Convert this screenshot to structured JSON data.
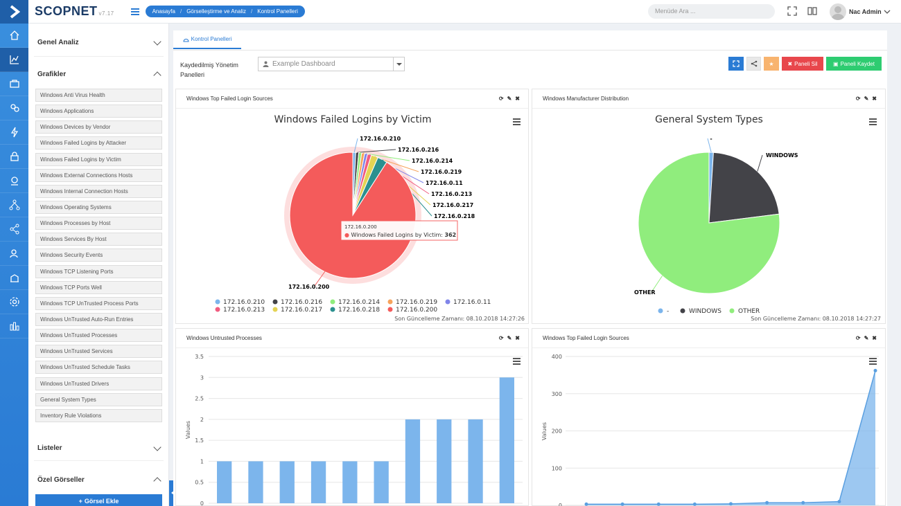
{
  "app": {
    "brand": "SCOPNET",
    "version": "v7.17"
  },
  "breadcrumb": [
    "Anasayfa",
    "Görselleştirme ve Analiz",
    "Kontrol Panelleri"
  ],
  "search": {
    "placeholder": "Menüde Ara ..."
  },
  "user": {
    "name": "Nac Admin"
  },
  "sidebar": {
    "sections": {
      "genel": "Genel Analiz",
      "grafikler": "Grafikler",
      "listeler": "Listeler",
      "ozel": "Özel Görseller"
    },
    "items": [
      "Windows Anti Virus Health",
      "Windows Applications",
      "Windows Devices by Vendor",
      "Windows Failed Logins by Attacker",
      "Windows Failed Logins by Victim",
      "Windows External Connections Hosts",
      "Windows Internal Connection Hosts",
      "Windows Operating Systems",
      "Windows Processes by Host",
      "Windows Services By Host",
      "Windows Security Events",
      "Windows TCP Listening Ports",
      "Windows TCP Ports Well",
      "Windows TCP UnTrusted Process Ports",
      "Windows UnTrusted Auto-Run Entries",
      "Windows UnTrusted Processes",
      "Windows UnTrusted Services",
      "Windows UnTrusted Schedule Tasks",
      "Windows UnTrusted Drivers",
      "General System Types",
      "Inventory Rule Violations"
    ],
    "add_button": "Görsel Ekle"
  },
  "main": {
    "tab": "Kontrol Panelleri",
    "saved_label": "Kaydedilmiş Yönetim Panelleri",
    "select_value": "Example Dashboard",
    "buttons": {
      "delete": "Paneli Sil",
      "save": "Paneli Kaydet"
    }
  },
  "panels": {
    "p1": {
      "title": "Windows Top Failed Login Sources",
      "footer": "Son Güncelleme Zamanı: 08.10.2018 14:27:26"
    },
    "p2": {
      "title": "Windows Manufacturer Distribution",
      "footer": "Son Güncelleme Zamanı: 08.10.2018 14:27:27"
    },
    "p3": {
      "title": "Windows Untrusted Processes"
    },
    "p4": {
      "title": "Windows Top Failed Login Sources"
    }
  },
  "chart_data": [
    {
      "type": "pie",
      "title": "Windows Failed Logins by Victim",
      "categories": [
        "172.16.0.210",
        "172.16.0.216",
        "172.16.0.214",
        "172.16.0.219",
        "172.16.0.11",
        "172.16.0.213",
        "172.16.0.217",
        "172.16.0.218",
        "172.16.0.200"
      ],
      "values": [
        3,
        3,
        3,
        3,
        3,
        4,
        7,
        10,
        362
      ],
      "colors": [
        "#7cb5ec",
        "#434348",
        "#90ed7d",
        "#f7a35c",
        "#8085e9",
        "#f15c80",
        "#e4d354",
        "#2b908f",
        "#f45b5b"
      ],
      "tooltip": {
        "label": "172.16.0.200",
        "series": "Windows Failed Logins by Victim",
        "value": "362"
      },
      "legend_position": "bottom"
    },
    {
      "type": "pie",
      "title": "General System Types",
      "categories": [
        "-",
        "WINDOWS",
        "OTHER"
      ],
      "values": [
        1,
        22,
        77
      ],
      "colors": [
        "#7cb5ec",
        "#434348",
        "#90ed7d"
      ],
      "legend_position": "bottom"
    },
    {
      "type": "bar",
      "ylabel": "Values",
      "ylim": [
        0,
        3.5
      ],
      "yticks": [
        "0",
        "0.5",
        "1",
        "1.5",
        "2",
        "2.5",
        "3",
        "3.5"
      ],
      "values": [
        1,
        1,
        1,
        1,
        1,
        1,
        2,
        2,
        2,
        3
      ],
      "color": "#7cb5ec",
      "grid": true
    },
    {
      "type": "area",
      "ylabel": "Values",
      "ylim": [
        0,
        400
      ],
      "yticks": [
        "0",
        "100",
        "200",
        "300",
        "400"
      ],
      "values": [
        3,
        3,
        3,
        3,
        4,
        7,
        7,
        10,
        362
      ],
      "color": "#7cb5ec",
      "grid": true
    }
  ]
}
